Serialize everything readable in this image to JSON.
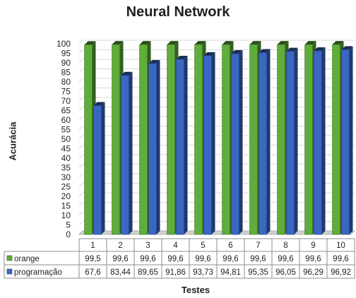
{
  "chart_data": {
    "type": "bar",
    "title": "Neural Network",
    "xlabel": "Testes",
    "ylabel": "Acurácia",
    "ylim": [
      0,
      100
    ],
    "yticks": [
      0,
      5,
      10,
      15,
      20,
      25,
      30,
      35,
      40,
      45,
      50,
      55,
      60,
      65,
      70,
      75,
      80,
      85,
      90,
      95,
      100
    ],
    "categories": [
      "1",
      "2",
      "3",
      "4",
      "5",
      "6",
      "7",
      "8",
      "9",
      "10"
    ],
    "series": [
      {
        "name": "orange",
        "color": "#5fad3a",
        "values": [
          99.5,
          99.6,
          99.6,
          99.6,
          99.6,
          99.6,
          99.6,
          99.6,
          99.6,
          99.6
        ],
        "labels": [
          "99,5",
          "99,6",
          "99,6",
          "99,6",
          "99,6",
          "99,6",
          "99,6",
          "99,6",
          "99,6",
          "99,6"
        ]
      },
      {
        "name": "programação",
        "color": "#3a67c4",
        "values": [
          67.6,
          83.44,
          89.65,
          91.86,
          93.73,
          94.81,
          95.35,
          96.05,
          96.29,
          96.92
        ],
        "labels": [
          "67,6",
          "83,44",
          "89,65",
          "91,86",
          "93,73",
          "94,81",
          "95,35",
          "96,05",
          "96,29",
          "96,92"
        ]
      }
    ],
    "grid": true,
    "legend": "data-table"
  }
}
